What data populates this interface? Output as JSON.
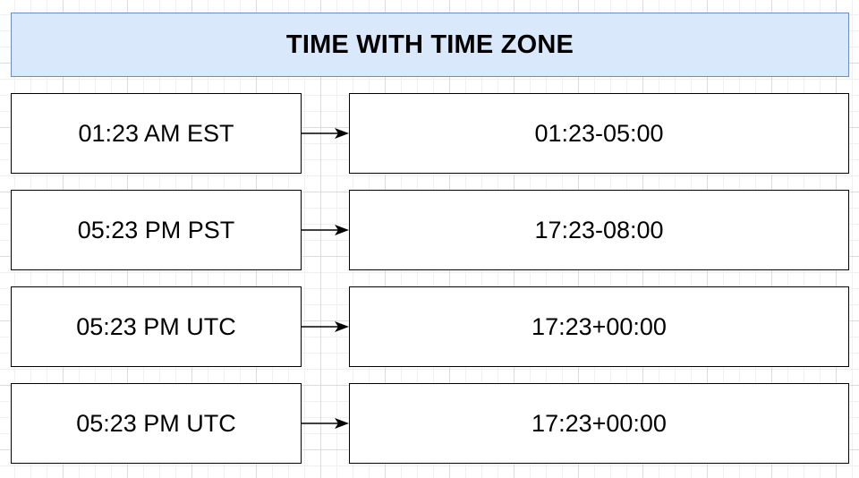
{
  "title": "TIME WITH TIME ZONE",
  "rows": [
    {
      "input": "01:23 AM EST",
      "output": "01:23-05:00"
    },
    {
      "input": "05:23 PM PST",
      "output": "17:23-08:00"
    },
    {
      "input": "05:23 PM UTC",
      "output": "17:23+00:00"
    },
    {
      "input": "05:23 PM UTC",
      "output": "17:23+00:00"
    }
  ]
}
